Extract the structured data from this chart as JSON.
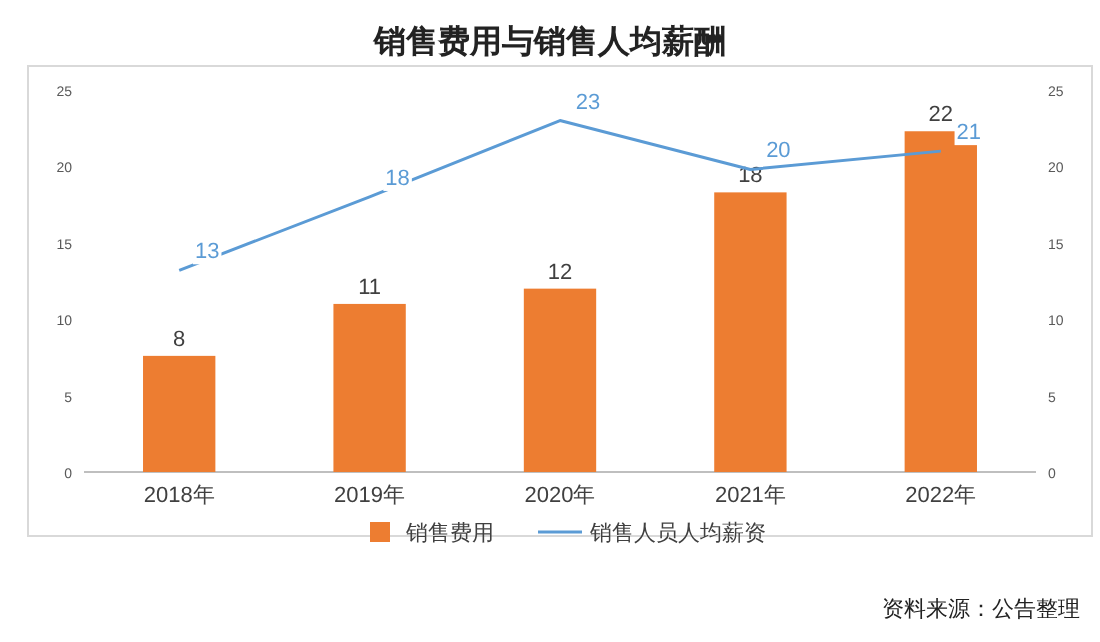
{
  "chart_data": {
    "type": "bar",
    "title": "销售费用与销售人均薪酬",
    "categories": [
      "2018年",
      "2019年",
      "2020年",
      "2021年",
      "2022年"
    ],
    "series": [
      {
        "name": "销售费用",
        "color": "#ed7d31",
        "values": [
          7.6,
          11,
          12,
          18.3,
          22.3
        ],
        "value_labels": [
          "8",
          "11",
          "12",
          "18",
          "22"
        ]
      },
      {
        "name": "销售人员人均薪资",
        "type": "line",
        "axis": "y2",
        "color": "#5b9bd5",
        "values": [
          13.2,
          18,
          23,
          19.8,
          21
        ],
        "value_labels": [
          "13",
          "18",
          "23",
          "20",
          "21"
        ]
      }
    ],
    "ylim": [
      0,
      25
    ],
    "yticks": [
      0,
      5,
      10,
      15,
      20,
      25
    ],
    "y2lim": [
      0,
      25
    ],
    "y2ticks": [
      0,
      5,
      10,
      15,
      20,
      25
    ],
    "legend": "bottom",
    "annotations": [
      "资料来源：公告整理"
    ]
  }
}
